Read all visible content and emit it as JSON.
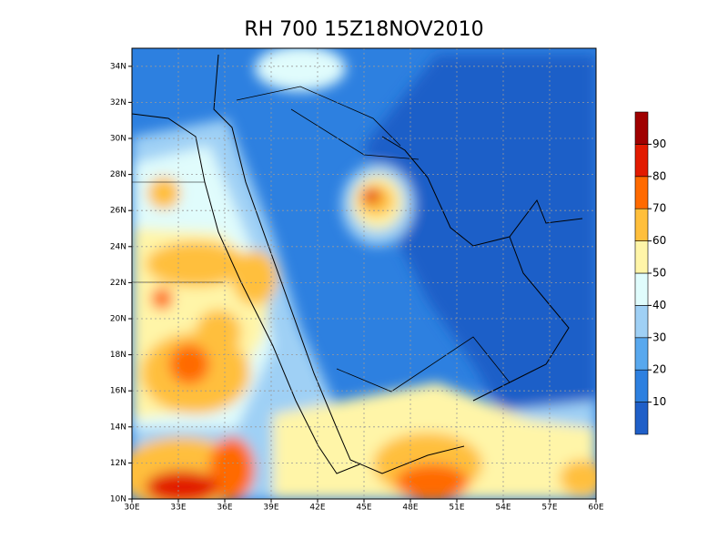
{
  "chart_data": {
    "type": "contour-map",
    "title": "RH 700 15Z18NOV2010",
    "xlim": [
      30,
      60
    ],
    "ylim": [
      10,
      35
    ],
    "xticks": [
      {
        "value": 30,
        "label": "30E"
      },
      {
        "value": 33,
        "label": "33E"
      },
      {
        "value": 36,
        "label": "36E"
      },
      {
        "value": 39,
        "label": "39E"
      },
      {
        "value": 42,
        "label": "42E"
      },
      {
        "value": 45,
        "label": "45E"
      },
      {
        "value": 48,
        "label": "48E"
      },
      {
        "value": 51,
        "label": "51E"
      },
      {
        "value": 54,
        "label": "54E"
      },
      {
        "value": 57,
        "label": "57E"
      },
      {
        "value": 60,
        "label": "60E"
      }
    ],
    "yticks": [
      {
        "value": 10,
        "label": "10N"
      },
      {
        "value": 12,
        "label": "12N"
      },
      {
        "value": 14,
        "label": "14N"
      },
      {
        "value": 16,
        "label": "16N"
      },
      {
        "value": 18,
        "label": "18N"
      },
      {
        "value": 20,
        "label": "20N"
      },
      {
        "value": 22,
        "label": "22N"
      },
      {
        "value": 24,
        "label": "24N"
      },
      {
        "value": 26,
        "label": "26N"
      },
      {
        "value": 28,
        "label": "28N"
      },
      {
        "value": 30,
        "label": "30N"
      },
      {
        "value": 32,
        "label": "32N"
      },
      {
        "value": 34,
        "label": "34N"
      }
    ],
    "grid": true,
    "colorbar": {
      "levels": [
        10,
        20,
        30,
        40,
        50,
        60,
        70,
        80,
        90
      ],
      "colors": [
        "#1f5fc8",
        "#2d80e0",
        "#58a8ee",
        "#9fd0f5",
        "#e0fcfc",
        "#fff5a8",
        "#ffbf3c",
        "#ff6a00",
        "#e21a00",
        "#a00000"
      ]
    }
  }
}
